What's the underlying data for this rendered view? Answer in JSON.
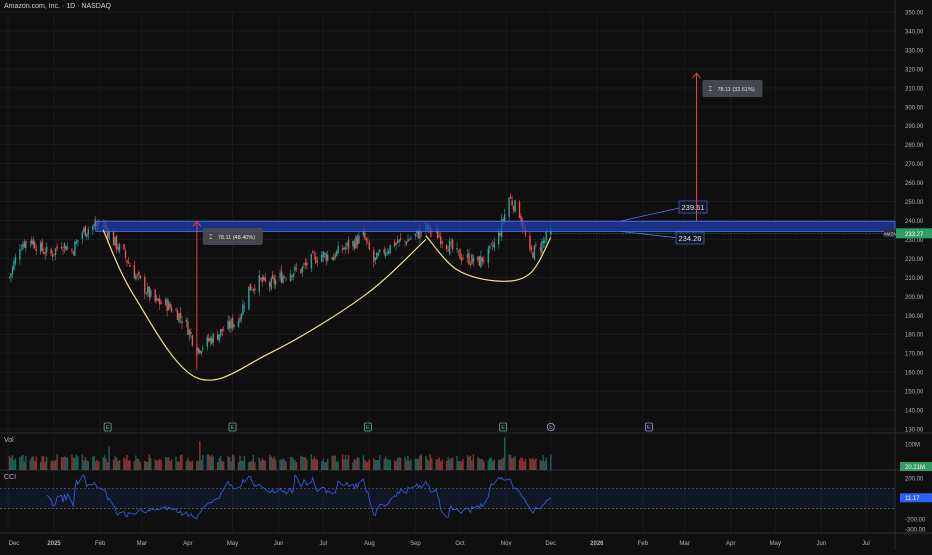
{
  "header": {
    "title": "Amazon.com, Inc. · 1D · NASDAQ"
  },
  "volume_label": "Vol",
  "cci_label": "CCI",
  "colors": {
    "background": "#0f0f0f",
    "up": "#26a69a",
    "down": "#ef5350",
    "zone": "#1e3fae",
    "zone_border": "#4f78ff",
    "arc": "#f3e38a",
    "cci": "#2f5bd8",
    "price_tag": "#2f9e63",
    "arrow": "#ef3b4e"
  },
  "chart_data": [
    {
      "type": "candlestick",
      "price_axis": {
        "ylim": [
          130,
          350
        ],
        "ticks": [
          "350.00",
          "340.00",
          "330.00",
          "320.00",
          "310.00",
          "300.00",
          "290.00",
          "280.00",
          "270.00",
          "260.00",
          "250.00",
          "240.00",
          "230.00",
          "220.00",
          "210.00",
          "200.00",
          "190.00",
          "180.00",
          "170.00",
          "160.00",
          "150.00",
          "140.00",
          "130.00"
        ]
      },
      "time_axis": {
        "ticks": [
          "Dec",
          "2025",
          "Feb",
          "Mar",
          "Apr",
          "May",
          "Jun",
          "Jul",
          "Aug",
          "Sep",
          "Oct",
          "Nov",
          "Dec",
          "2026",
          "Feb",
          "Mar",
          "Apr",
          "May",
          "Jun",
          "Jul"
        ]
      },
      "close_path": [
        [
          "2024-12-02",
          210
        ],
        [
          "2024-12-09",
          227
        ],
        [
          "2024-12-16",
          230
        ],
        [
          "2024-12-23",
          225
        ],
        [
          "2024-12-30",
          222
        ],
        [
          "2025-01-06",
          228
        ],
        [
          "2025-01-13",
          224
        ],
        [
          "2025-01-20",
          234
        ],
        [
          "2025-01-27",
          237
        ],
        [
          "2025-02-03",
          238
        ],
        [
          "2025-02-10",
          229
        ],
        [
          "2025-02-17",
          222
        ],
        [
          "2025-02-24",
          212
        ],
        [
          "2025-03-03",
          204
        ],
        [
          "2025-03-10",
          197
        ],
        [
          "2025-03-17",
          196
        ],
        [
          "2025-03-24",
          192
        ],
        [
          "2025-03-31",
          185
        ],
        [
          "2025-04-07",
          172
        ],
        [
          "2025-04-14",
          176
        ],
        [
          "2025-04-21",
          180
        ],
        [
          "2025-04-28",
          184
        ],
        [
          "2025-05-05",
          188
        ],
        [
          "2025-05-12",
          204
        ],
        [
          "2025-05-19",
          208
        ],
        [
          "2025-05-26",
          206
        ],
        [
          "2025-06-02",
          210
        ],
        [
          "2025-06-09",
          213
        ],
        [
          "2025-06-16",
          214
        ],
        [
          "2025-06-23",
          219
        ],
        [
          "2025-06-30",
          222
        ],
        [
          "2025-07-07",
          221
        ],
        [
          "2025-07-14",
          225
        ],
        [
          "2025-07-21",
          228
        ],
        [
          "2025-07-28",
          232
        ],
        [
          "2025-08-04",
          218
        ],
        [
          "2025-08-11",
          224
        ],
        [
          "2025-08-18",
          228
        ],
        [
          "2025-08-25",
          229
        ],
        [
          "2025-09-01",
          232
        ],
        [
          "2025-09-08",
          236
        ],
        [
          "2025-09-15",
          233
        ],
        [
          "2025-09-22",
          228
        ],
        [
          "2025-09-29",
          222
        ],
        [
          "2025-10-06",
          220
        ],
        [
          "2025-10-13",
          218
        ],
        [
          "2025-10-20",
          222
        ],
        [
          "2025-10-27",
          232
        ],
        [
          "2025-11-03",
          252
        ],
        [
          "2025-11-10",
          244
        ],
        [
          "2025-11-17",
          222
        ],
        [
          "2025-11-24",
          227
        ],
        [
          "2025-12-01",
          233.27
        ]
      ],
      "current_price": {
        "symbol": "AMZN",
        "value": "233.27"
      },
      "resistance_zone": {
        "top": 239.61,
        "bottom": 234.26,
        "top_label": "239.61",
        "bottom_label": "234.26"
      },
      "measurements": [
        {
          "label": "78.11 (48.40%)",
          "from": 161.38,
          "to": 239.49,
          "date": "2025-04-07"
        },
        {
          "label": "78.11 (32.61%)",
          "from": 239.61,
          "to": 317.72,
          "date": "2026-03-09"
        }
      ],
      "cup_handle": {
        "cup": [
          [
            "2025-02-03",
            235
          ],
          [
            "2025-02-24",
            200
          ],
          [
            "2025-04-07",
            157
          ],
          [
            "2025-05-26",
            170
          ],
          [
            "2025-07-28",
            200
          ],
          [
            "2025-09-08",
            230
          ]
        ],
        "handle": [
          [
            "2025-09-08",
            232
          ],
          [
            "2025-09-29",
            214
          ],
          [
            "2025-10-27",
            208
          ],
          [
            "2025-11-17",
            212
          ],
          [
            "2025-12-01",
            231
          ]
        ]
      },
      "event_markers": [
        {
          "icon": "earnings-icon",
          "text": "E",
          "date": "2025-02-06"
        },
        {
          "icon": "earnings-icon",
          "text": "E",
          "date": "2025-05-01"
        },
        {
          "icon": "earnings-icon",
          "text": "E",
          "date": "2025-07-31"
        },
        {
          "icon": "earnings-icon",
          "text": "E",
          "date": "2025-10-30"
        },
        {
          "icon": "replay-icon",
          "text": "",
          "date": "2025-12-01"
        },
        {
          "icon": "earnings-icon",
          "text": "E",
          "date": "2026-02-05"
        }
      ]
    },
    {
      "type": "bar",
      "name": "Vol",
      "axis_ticks": [
        "100M"
      ],
      "last_value": "20.21M",
      "spike_dates": [
        [
          "2025-04-09",
          110
        ],
        [
          "2025-10-31",
          125
        ],
        [
          "2025-02-07",
          90
        ]
      ],
      "typical": [
        30,
        60
      ]
    },
    {
      "type": "line",
      "name": "CCI",
      "axis_ticks": [
        "200.00",
        "0.00",
        "-200.00",
        "-300.00"
      ],
      "band": [
        100,
        -100
      ],
      "last_value": "11.17",
      "ylim": [
        -330,
        240
      ]
    }
  ]
}
